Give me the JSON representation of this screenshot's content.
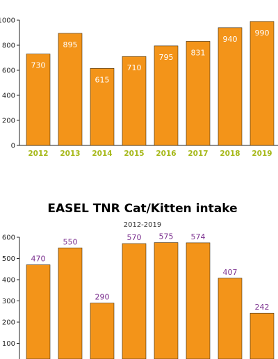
{
  "colors": {
    "bar": "#F39419",
    "bar_stroke": "#3a2a10",
    "axis": "#222222",
    "xtick_label": "#A6B819",
    "top_value_label": "#ffffff",
    "bottom_value_label": "#7A2E8E",
    "title": "#7A2E8E"
  },
  "chart_data": [
    {
      "type": "bar",
      "title": "",
      "subtitle": "",
      "xlabel": "",
      "ylabel": "",
      "categories": [
        "2012",
        "2013",
        "2014",
        "2015",
        "2016",
        "2017",
        "2018",
        "2019"
      ],
      "values": [
        730,
        895,
        615,
        710,
        795,
        831,
        940,
        990
      ],
      "ylim": [
        0,
        1000
      ],
      "yticks": [
        0,
        200,
        400,
        600,
        800,
        1000
      ],
      "grid": false,
      "legend": "none"
    },
    {
      "type": "bar",
      "title": "EASEL TNR Cat/Kitten intake",
      "subtitle": "2012-2019",
      "xlabel": "",
      "ylabel": "",
      "categories": [
        "",
        "",
        "",
        "",
        "",
        "",
        "",
        ""
      ],
      "values": [
        470,
        550,
        290,
        570,
        575,
        574,
        407,
        242
      ],
      "ylim": [
        0,
        600
      ],
      "yticks": [
        100,
        200,
        300,
        400,
        500,
        600
      ],
      "grid": false,
      "legend": "none"
    }
  ]
}
